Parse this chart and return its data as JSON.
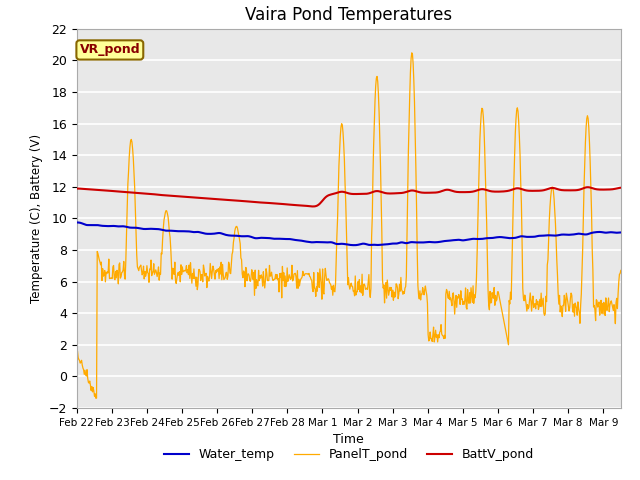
{
  "title": "Vaira Pond Temperatures",
  "xlabel": "Time",
  "ylabel": "Temperature (C), Battery (V)",
  "ylim": [
    -2,
    22
  ],
  "bg_color": "#e8e8e8",
  "fig_color": "#ffffff",
  "grid_color": "#ffffff",
  "annotation_text": "VR_pond",
  "annotation_bg": "#ffff99",
  "annotation_border": "#886600",
  "water_temp_color": "#0000cc",
  "panel_temp_color": "#ffaa00",
  "batt_color": "#cc0000",
  "water_temp_label": "Water_temp",
  "panel_temp_label": "PanelT_pond",
  "batt_label": "BattV_pond",
  "x_tick_labels": [
    "Feb 22",
    "Feb 23",
    "Feb 24",
    "Feb 25",
    "Feb 26",
    "Feb 27",
    "Feb 28",
    "Mar 1",
    "Mar 2",
    "Mar 3",
    "Mar 4",
    "Mar 5",
    "Mar 6",
    "Mar 7",
    "Mar 8",
    "Mar 9"
  ],
  "num_points": 800,
  "date_range_days": 15.5
}
